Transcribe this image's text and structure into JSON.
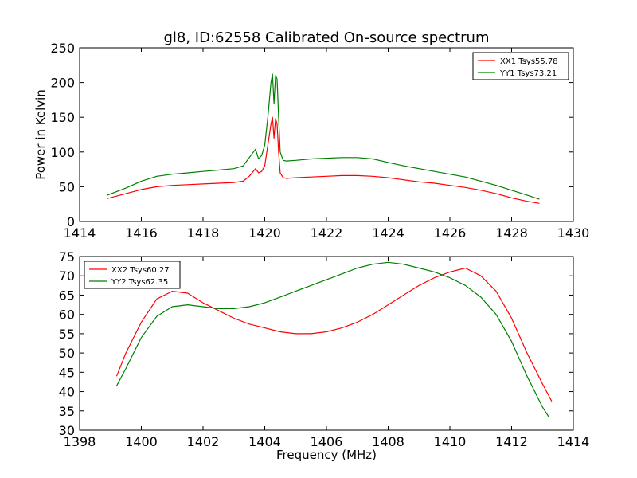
{
  "figure": {
    "title": "gl8, ID:62558 Calibrated On-source spectrum"
  },
  "chart_data": [
    {
      "type": "line",
      "title": "gl8, ID:62558 Calibrated On-source spectrum",
      "xlabel": "",
      "ylabel": "Power in Kelvin",
      "xlim": [
        1414,
        1430
      ],
      "ylim": [
        0,
        250
      ],
      "xticks": [
        1414,
        1416,
        1418,
        1420,
        1422,
        1424,
        1426,
        1428,
        1430
      ],
      "yticks": [
        0,
        50,
        100,
        150,
        200,
        250
      ],
      "grid": false,
      "legend": "top-right",
      "series": [
        {
          "name": "XX1 Tsys55.78",
          "color": "#ff0000",
          "x": [
            1414.9,
            1415.5,
            1416,
            1416.5,
            1417,
            1417.5,
            1418,
            1418.5,
            1419,
            1419.3,
            1419.5,
            1419.7,
            1419.8,
            1419.9,
            1420.0,
            1420.1,
            1420.2,
            1420.25,
            1420.3,
            1420.35,
            1420.4,
            1420.45,
            1420.5,
            1420.6,
            1420.7,
            1421,
            1421.5,
            1422,
            1422.5,
            1423,
            1423.5,
            1424,
            1424.5,
            1425,
            1425.5,
            1426,
            1426.5,
            1427,
            1427.5,
            1428,
            1428.5,
            1428.9
          ],
          "values": [
            33,
            40,
            46,
            50,
            52,
            53,
            54,
            55,
            56,
            58,
            65,
            76,
            70,
            72,
            80,
            110,
            140,
            150,
            120,
            148,
            140,
            100,
            70,
            63,
            62,
            63,
            64,
            65,
            66,
            66,
            65,
            63,
            60,
            57,
            55,
            52,
            49,
            45,
            40,
            34,
            29,
            26
          ]
        },
        {
          "name": "YY1 Tsys73.21",
          "color": "#008000",
          "x": [
            1414.9,
            1415.5,
            1416,
            1416.5,
            1417,
            1417.5,
            1418,
            1418.5,
            1419,
            1419.3,
            1419.5,
            1419.7,
            1419.8,
            1419.9,
            1420.0,
            1420.1,
            1420.2,
            1420.25,
            1420.3,
            1420.35,
            1420.4,
            1420.45,
            1420.5,
            1420.6,
            1420.7,
            1421,
            1421.5,
            1422,
            1422.5,
            1423,
            1423.5,
            1424,
            1424.5,
            1425,
            1425.5,
            1426,
            1426.5,
            1427,
            1427.5,
            1428,
            1428.5,
            1428.9
          ],
          "values": [
            38,
            48,
            58,
            65,
            68,
            70,
            72,
            74,
            76,
            80,
            92,
            104,
            90,
            95,
            110,
            150,
            200,
            212,
            170,
            210,
            205,
            150,
            100,
            88,
            87,
            88,
            90,
            91,
            92,
            92,
            90,
            85,
            80,
            76,
            72,
            68,
            64,
            58,
            52,
            45,
            38,
            32
          ]
        }
      ]
    },
    {
      "type": "line",
      "title": "",
      "xlabel": "Frequency (MHz)",
      "ylabel": "",
      "xlim": [
        1398,
        1414
      ],
      "ylim": [
        30,
        75
      ],
      "xticks": [
        1398,
        1400,
        1402,
        1404,
        1406,
        1408,
        1410,
        1412,
        1414
      ],
      "yticks": [
        30,
        35,
        40,
        45,
        50,
        55,
        60,
        65,
        70,
        75
      ],
      "grid": false,
      "legend": "top-left",
      "series": [
        {
          "name": "XX2 Tsys60.27",
          "color": "#ff0000",
          "x": [
            1399.2,
            1399.5,
            1400,
            1400.5,
            1401,
            1401.5,
            1402,
            1402.5,
            1403,
            1403.5,
            1404,
            1404.5,
            1405,
            1405.5,
            1406,
            1406.5,
            1407,
            1407.5,
            1408,
            1408.5,
            1409,
            1409.5,
            1410,
            1410.5,
            1411,
            1411.5,
            1412,
            1412.5,
            1413,
            1413.3
          ],
          "values": [
            44,
            50,
            58,
            64,
            66,
            65.5,
            63,
            61,
            59,
            57.5,
            56.5,
            55.5,
            55,
            55,
            55.5,
            56.5,
            58,
            60,
            62.5,
            65,
            67.5,
            69.5,
            71,
            72,
            70,
            66,
            59,
            50,
            42,
            37.5
          ]
        },
        {
          "name": "YY2 Tsys62.35",
          "color": "#008000",
          "x": [
            1399.2,
            1399.5,
            1400,
            1400.5,
            1401,
            1401.5,
            1402,
            1402.5,
            1403,
            1403.5,
            1404,
            1404.5,
            1405,
            1405.5,
            1406,
            1406.5,
            1407,
            1407.5,
            1408,
            1408.5,
            1409,
            1409.5,
            1410,
            1410.5,
            1411,
            1411.5,
            1412,
            1412.5,
            1413,
            1413.2
          ],
          "values": [
            41.5,
            46,
            54,
            59.5,
            62,
            62.5,
            62,
            61.5,
            61.5,
            62,
            63,
            64.5,
            66,
            67.5,
            69,
            70.5,
            72,
            73,
            73.5,
            73,
            72,
            71,
            69.5,
            67.5,
            64.5,
            60,
            53,
            44,
            36,
            33.5
          ]
        }
      ]
    }
  ]
}
